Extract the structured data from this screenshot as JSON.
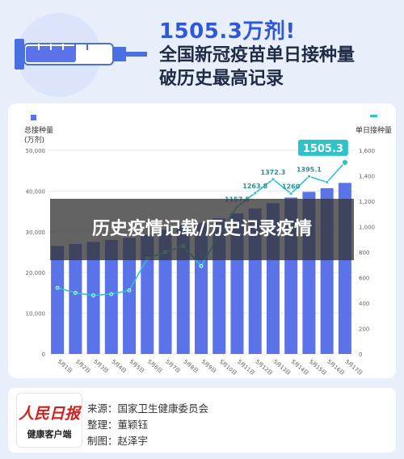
{
  "header": {
    "headline": "1505.3万剂!",
    "subtitle_line1": "全国新冠疫苗单日接种量",
    "subtitle_line2": "破历史最高记录"
  },
  "overlay": {
    "text": "历史疫情记载/历史记录疫情"
  },
  "footer": {
    "logo_top": "人民日报",
    "logo_bottom": "健康客户端",
    "source": "来源：国家卫生健康委员会",
    "editor": "整理：董颖钰",
    "producer": "制图：赵泽宇"
  },
  "colors": {
    "bar": "#5b73e8",
    "line": "#2fc3c9",
    "accent": "#2f58d6",
    "highlight_text": "#ffffff"
  },
  "chart_data": {
    "type": "bar",
    "categories": [
      "5月1日",
      "5月2日",
      "5月3日",
      "5月4日",
      "5月5日",
      "5月6日",
      "5月7日",
      "5月8日",
      "5月9日",
      "5月10日",
      "5月11日",
      "5月12日",
      "5月13日",
      "5月14日",
      "5月15日",
      "5月16日",
      "5月17日"
    ],
    "left_axis": {
      "label_line1": "总接种量",
      "label_line2": "(万剂)",
      "ticks": [
        "0",
        "10,000",
        "20,000",
        "30,000",
        "40,000",
        "50,000"
      ],
      "ylim": [
        0,
        50000
      ]
    },
    "right_axis": {
      "label": "单日接种量",
      "ticks": [
        "0",
        "200",
        "400",
        "600",
        "800",
        "1,000",
        "1,200",
        "1,400",
        "1,600"
      ],
      "ylim": [
        0,
        1600
      ]
    },
    "series": [
      {
        "type": "bar",
        "values": [
          26500,
          27000,
          27500,
          28000,
          28500,
          29300,
          30500,
          31500,
          32200,
          33300,
          34500,
          35700,
          37000,
          38400,
          39800,
          40700,
          42000
        ]
      },
      {
        "type": "line",
        "values": [
          520,
          480,
          460,
          470,
          500,
          750,
          800,
          850,
          690,
          940,
          1157.5,
          1263.8,
          1372.3,
          1260,
          1395.1,
          1350,
          1505.3
        ]
      }
    ],
    "data_labels": [
      {
        "index": 10,
        "text": "1157.5"
      },
      {
        "index": 11,
        "text": "1263.8"
      },
      {
        "index": 12,
        "text": "1372.3"
      },
      {
        "index": 13,
        "text": "1260"
      },
      {
        "index": 14,
        "text": "1395.1"
      },
      {
        "index": 16,
        "text": "1505.3",
        "highlight": true
      }
    ],
    "grid": true,
    "legend": "top-left"
  }
}
